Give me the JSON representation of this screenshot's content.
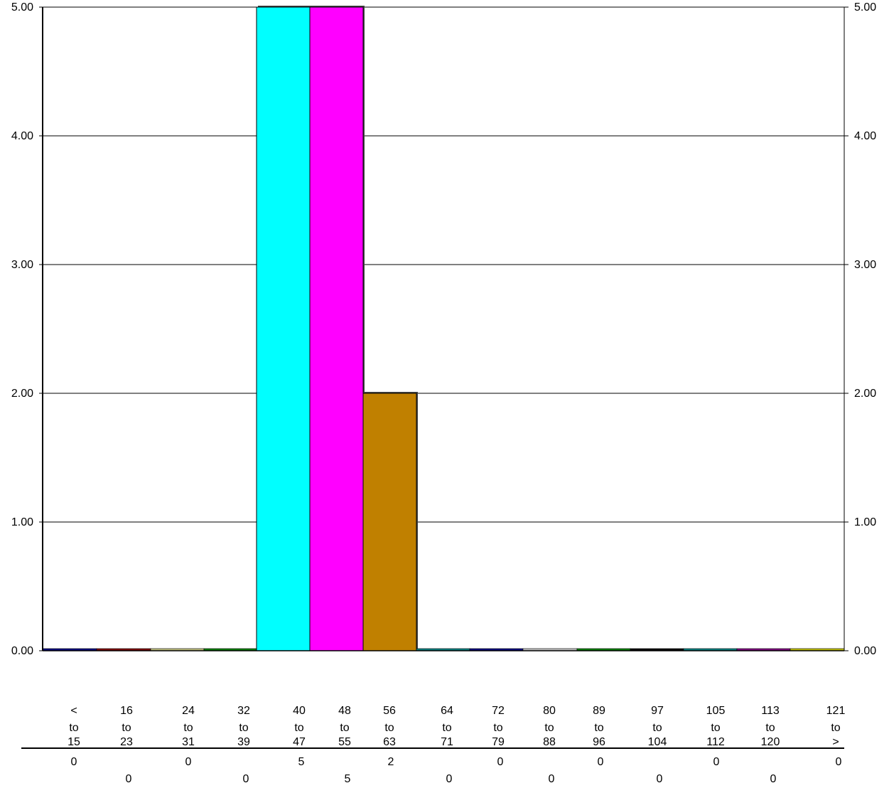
{
  "chart_data": {
    "type": "bar",
    "categories": [
      [
        "<",
        "to",
        "15"
      ],
      [
        "16",
        "to",
        "23"
      ],
      [
        "24",
        "to",
        "31"
      ],
      [
        "32",
        "to",
        "39"
      ],
      [
        "40",
        "to",
        "47"
      ],
      [
        "48",
        "to",
        "55"
      ],
      [
        "56",
        "to",
        "63"
      ],
      [
        "64",
        "to",
        "71"
      ],
      [
        "72",
        "to",
        "79"
      ],
      [
        "80",
        "to",
        "88"
      ],
      [
        "89",
        "to",
        "96"
      ],
      [
        "97",
        "to",
        "104"
      ],
      [
        "105",
        "to",
        "112"
      ],
      [
        "113",
        "to",
        "120"
      ],
      [
        "121",
        "to",
        ">"
      ]
    ],
    "values": [
      0,
      0,
      0,
      0,
      5,
      5,
      2,
      0,
      0,
      0,
      0,
      0,
      0,
      0,
      0
    ],
    "count_labels": [
      "0",
      "0",
      "0",
      "0",
      "5",
      "5",
      "2",
      "0",
      "0",
      "0",
      "0",
      "0",
      "0",
      "0",
      "0"
    ],
    "bar_colors": [
      "#000080",
      "#800000",
      "#c0c080",
      "#008000",
      "#00ffff",
      "#ff00ff",
      "#c08000",
      "#008080",
      "#000080",
      "#c0c0c0",
      "#008000",
      "#000000",
      "#008080",
      "#800080",
      "#c0c000"
    ],
    "yticks": [
      "0.00",
      "1.00",
      "2.00",
      "3.00",
      "4.00",
      "5.00"
    ],
    "ylim": [
      0,
      5
    ],
    "grid": true,
    "title": "",
    "xlabel": "",
    "ylabel": ""
  }
}
